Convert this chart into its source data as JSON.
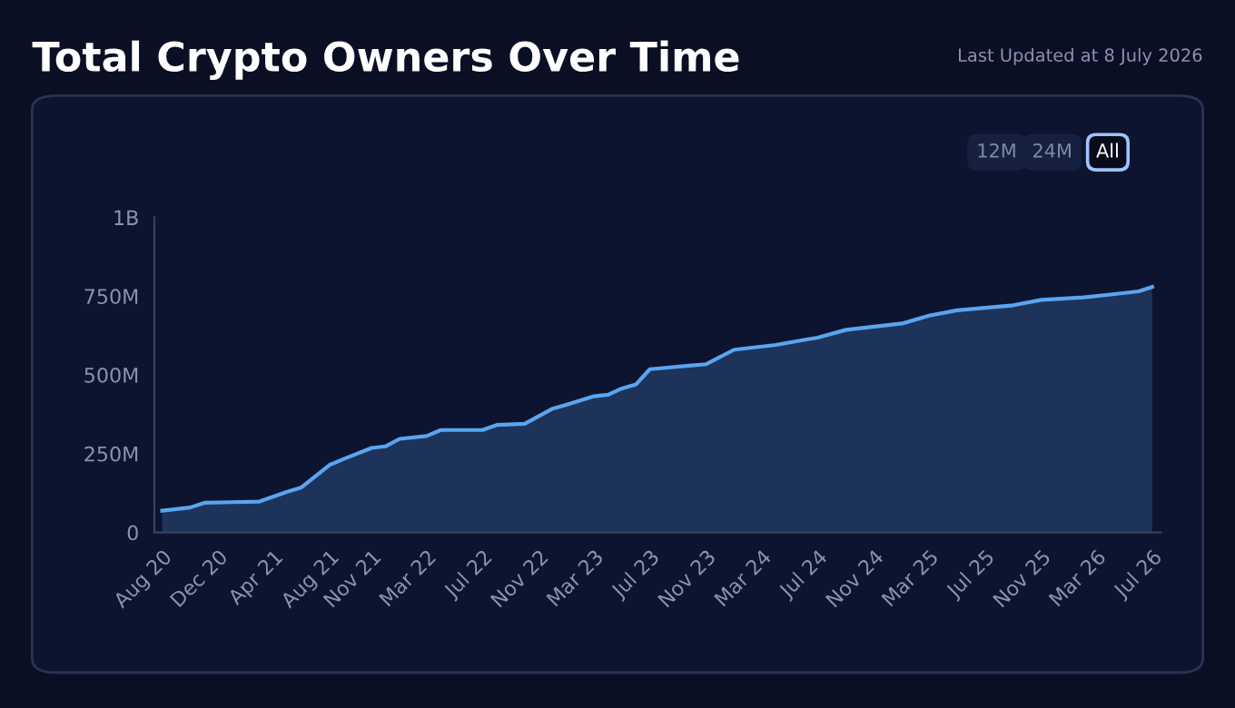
{
  "chart_data": {
    "type": "area",
    "title": "Total Crypto Owners Over Time",
    "subtitle": "Last Updated at 8 July 2026",
    "annotations": [
      "12M",
      "24M",
      "All"
    ],
    "x": [
      "2020-08",
      "2020-10",
      "2020-11",
      "2021-03",
      "2021-05",
      "2021-06",
      "2021-08",
      "2021-09",
      "2021-11",
      "2021-12",
      "2022-01",
      "2022-03",
      "2022-04",
      "2022-07",
      "2022-08",
      "2022-10",
      "2022-12",
      "2023-01",
      "2023-03",
      "2023-04",
      "2023-05",
      "2023-06",
      "2023-07",
      "2023-11",
      "2024-01",
      "2024-04",
      "2024-06",
      "2024-07",
      "2024-09",
      "2024-11",
      "2025-01",
      "2025-03",
      "2025-05",
      "2025-09",
      "2025-11",
      "2026-02",
      "2026-04",
      "2026-06",
      "2026-07"
    ],
    "series": [
      {
        "color": "#5aa5f0",
        "values": [
          69000000,
          79000000,
          94000000,
          98000000,
          129000000,
          143000000,
          214000000,
          233000000,
          268000000,
          273000000,
          297000000,
          306000000,
          325000000,
          325000000,
          341000000,
          345000000,
          393000000,
          406000000,
          432000000,
          437000000,
          457000000,
          470000000,
          518000000,
          534000000,
          580000000,
          595000000,
          611000000,
          618000000,
          643000000,
          653000000,
          663000000,
          688000000,
          705000000,
          721000000,
          738000000,
          746000000,
          755000000,
          765000000,
          779000000
        ]
      }
    ],
    "ylim": [
      0,
      1000000000
    ],
    "yticks": [
      0,
      {
        "value": 250000000,
        "label": "250M"
      },
      {
        "value": 500000000,
        "label": "500M"
      },
      {
        "value": 750000000,
        "label": "750M"
      },
      {
        "value": 1000000000,
        "label": "1B"
      }
    ],
    "xlim": [
      "2020-07-15",
      "2026-07-20"
    ],
    "xticks": [
      {
        "value": "2020-08",
        "label": "Aug 20"
      },
      {
        "value": "2020-12",
        "label": "Dec 20"
      },
      {
        "value": "2021-04",
        "label": "Apr 21"
      },
      {
        "value": "2021-08",
        "label": "Aug 21"
      },
      {
        "value": "2021-11",
        "label": "Nov 21"
      },
      {
        "value": "2022-03",
        "label": "Mar 22"
      },
      {
        "value": "2022-07",
        "label": "Jul 22"
      },
      {
        "value": "2022-11",
        "label": "Nov 22"
      },
      {
        "value": "2023-03",
        "label": "Mar 23"
      },
      {
        "value": "2023-07",
        "label": "Jul 23"
      },
      {
        "value": "2023-11",
        "label": "Nov 23"
      },
      {
        "value": "2024-03",
        "label": "Mar 24"
      },
      {
        "value": "2024-07",
        "label": "Jul 24"
      },
      {
        "value": "2024-11",
        "label": "Nov 24"
      },
      {
        "value": "2025-03",
        "label": "Mar 25"
      },
      {
        "value": "2025-07",
        "label": "Jul 25"
      },
      {
        "value": "2025-11",
        "label": "Nov 25"
      },
      {
        "value": "2026-03",
        "label": "Mar 26"
      },
      {
        "value": "2026-07",
        "label": "Jul 26"
      }
    ],
    "grid": false,
    "legend": false
  }
}
